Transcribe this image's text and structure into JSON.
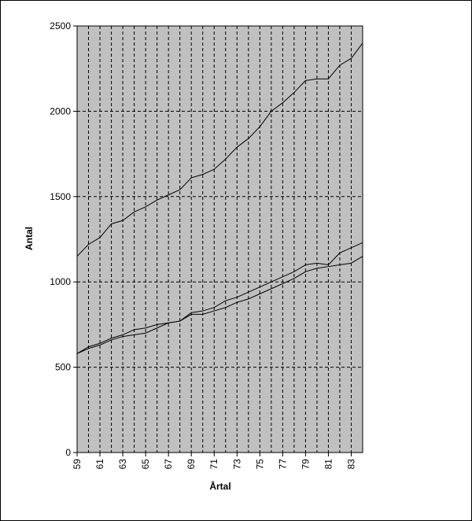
{
  "chart_data": {
    "type": "line",
    "x_label": "Årtal",
    "y_label": "Antal",
    "x": [
      59,
      60,
      61,
      62,
      63,
      64,
      65,
      66,
      67,
      68,
      69,
      70,
      71,
      72,
      73,
      74,
      75,
      76,
      77,
      78,
      79,
      80,
      81,
      82,
      83,
      84
    ],
    "series": [
      {
        "color": "#000000",
        "values": [
          1150,
          1220,
          1260,
          1340,
          1360,
          1410,
          1440,
          1480,
          1510,
          1540,
          1610,
          1630,
          1660,
          1720,
          1790,
          1840,
          1910,
          2000,
          2050,
          2110,
          2180,
          2190,
          2190,
          2270,
          2310,
          2400
        ]
      },
      {
        "color": "#000000",
        "values": [
          580,
          620,
          640,
          670,
          690,
          720,
          730,
          750,
          760,
          770,
          820,
          830,
          850,
          890,
          910,
          940,
          970,
          1000,
          1030,
          1060,
          1100,
          1110,
          1100,
          1170,
          1200,
          1230
        ]
      },
      {
        "color": "#000000",
        "values": [
          580,
          610,
          630,
          660,
          680,
          690,
          700,
          730,
          760,
          770,
          810,
          810,
          830,
          850,
          880,
          900,
          930,
          960,
          990,
          1020,
          1060,
          1080,
          1090,
          1100,
          1110,
          1150
        ]
      }
    ],
    "xlim": [
      59,
      84
    ],
    "xticks": [
      59,
      61,
      63,
      65,
      67,
      69,
      71,
      73,
      75,
      77,
      79,
      81,
      83
    ],
    "ylim": [
      0,
      2500
    ],
    "yticks": [
      0,
      500,
      1000,
      1500,
      2000,
      2500
    ],
    "grid": true,
    "plot_background": "#c0c0c0"
  }
}
